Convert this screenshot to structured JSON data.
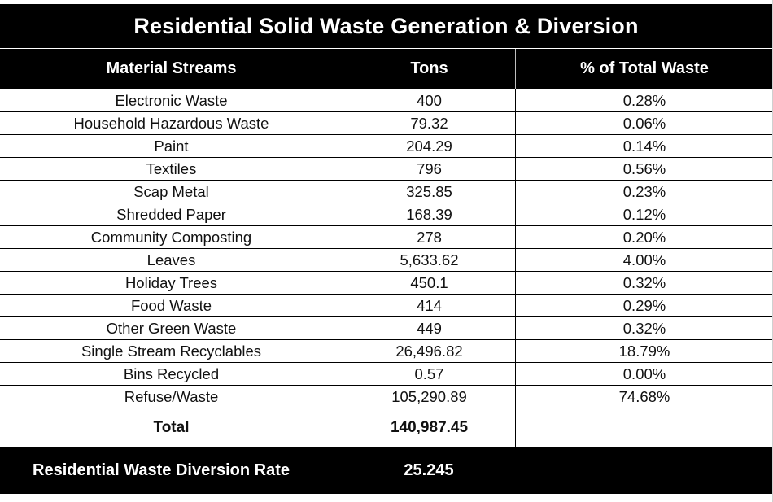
{
  "title": "Residential Solid Waste Generation & Diversion",
  "header": {
    "col1": "Material Streams",
    "col2": "Tons",
    "col3": "% of Total Waste"
  },
  "rows": [
    {
      "stream": "Electronic Waste",
      "tons": "400",
      "percent": "0.28%"
    },
    {
      "stream": "Household Hazardous Waste",
      "tons": "79.32",
      "percent": "0.06%"
    },
    {
      "stream": "Paint",
      "tons": "204.29",
      "percent": "0.14%"
    },
    {
      "stream": "Textiles",
      "tons": "796",
      "percent": "0.56%"
    },
    {
      "stream": "Scap Metal",
      "tons": "325.85",
      "percent": "0.23%"
    },
    {
      "stream": "Shredded Paper",
      "tons": "168.39",
      "percent": "0.12%"
    },
    {
      "stream": "Community Composting",
      "tons": "278",
      "percent": "0.20%"
    },
    {
      "stream": "Leaves",
      "tons": "5,633.62",
      "percent": "4.00%"
    },
    {
      "stream": "Holiday Trees",
      "tons": "450.1",
      "percent": "0.32%"
    },
    {
      "stream": "Food Waste",
      "tons": "414",
      "percent": "0.29%"
    },
    {
      "stream": "Other Green Waste",
      "tons": "449",
      "percent": "0.32%"
    },
    {
      "stream": "Single Stream Recyclables",
      "tons": "26,496.82",
      "percent": "18.79%"
    },
    {
      "stream": "Bins Recycled",
      "tons": "0.57",
      "percent": "0.00%"
    },
    {
      "stream": "Refuse/Waste",
      "tons": "105,290.89",
      "percent": "74.68%"
    }
  ],
  "total": {
    "label": "Total",
    "tons": "140,987.45",
    "percent": ""
  },
  "diversion": {
    "label": "Residential Waste Diversion Rate",
    "value": "25.245"
  }
}
